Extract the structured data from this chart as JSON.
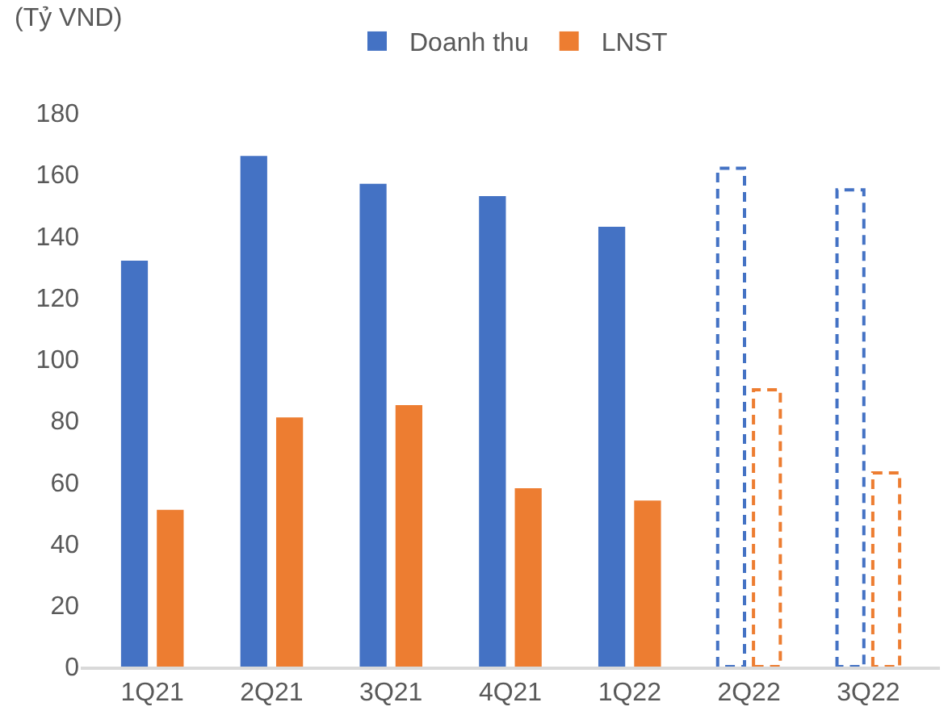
{
  "chart_data": {
    "type": "bar",
    "ylabel": "(Tỷ VND)",
    "categories": [
      "1Q21",
      "2Q21",
      "3Q21",
      "4Q21",
      "1Q22",
      "2Q22",
      "3Q22"
    ],
    "series": [
      {
        "name": "Doanh thu",
        "color": "#4472c4",
        "values": [
          132,
          166,
          157,
          153,
          143,
          null,
          null
        ]
      },
      {
        "name": "LNST",
        "color": "#ed7d31",
        "values": [
          51,
          81,
          85,
          58,
          54,
          null,
          null
        ]
      },
      {
        "color": "#4472c4",
        "line_style": "dashed",
        "values": [
          null,
          null,
          null,
          null,
          null,
          162,
          155
        ]
      },
      {
        "color": "#ed7d31",
        "line_style": "dashed",
        "values": [
          null,
          null,
          null,
          null,
          null,
          90,
          63
        ]
      }
    ],
    "ylim": [
      0,
      180
    ],
    "yticks": [
      0,
      20,
      40,
      60,
      80,
      100,
      120,
      140,
      160,
      180
    ],
    "grid": false,
    "legend": "top"
  }
}
